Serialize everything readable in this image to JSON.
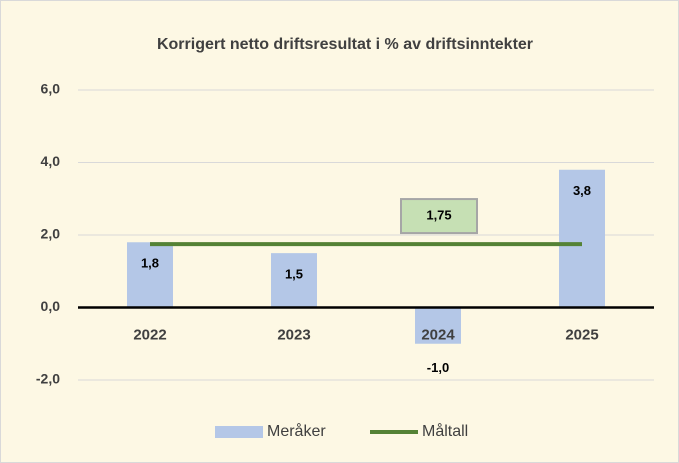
{
  "chart_data": {
    "type": "bar",
    "title": "Korrigert netto driftsresultat i % av driftsinntekter",
    "categories": [
      "2022",
      "2023",
      "2024",
      "2025"
    ],
    "series": [
      {
        "name": "Meråker",
        "type": "bar",
        "color": "#b4c7e7",
        "values": [
          1.8,
          1.5,
          -1.0,
          3.8
        ],
        "value_labels": [
          "1,8",
          "1,5",
          "-1,0",
          "3,8"
        ]
      },
      {
        "name": "Måltall",
        "type": "line",
        "color": "#548235",
        "values": [
          1.75,
          1.75,
          1.75,
          1.75
        ],
        "value_labels": [
          null,
          null,
          "1,75",
          null
        ]
      }
    ],
    "ylim": [
      -2,
      6
    ],
    "yticks": [
      {
        "value": -2,
        "label": "-2,0"
      },
      {
        "value": 0,
        "label": "0,0"
      },
      {
        "value": 2,
        "label": "2,0"
      },
      {
        "value": 4,
        "label": "4,0"
      },
      {
        "value": 6,
        "label": "6,0"
      }
    ],
    "grid": true,
    "legend": "bottom"
  }
}
